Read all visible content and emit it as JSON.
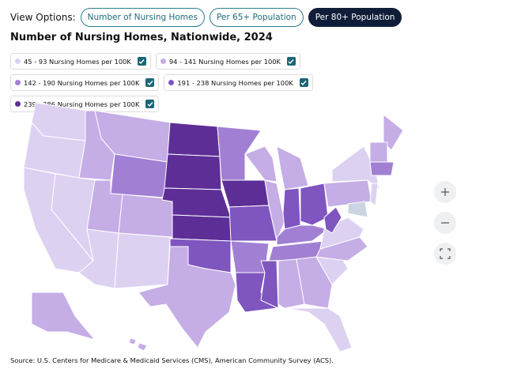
{
  "header": {
    "view_label": "View Options:",
    "buttons": [
      "Number of Nursing Homes",
      "Per 65+ Population",
      "Per 80+ Population"
    ],
    "active_button": 2
  },
  "title": "Number of Nursing Homes, Nationwide, 2024",
  "legend": [
    {
      "label": "45 - 93 Nursing Homes per 100K",
      "color": "#ddd1f2",
      "checked": true
    },
    {
      "label": "94 - 141 Nursing Homes per 100K",
      "color": "#c5ade6",
      "checked": true
    },
    {
      "label": "142 - 190 Nursing Homes per 100K",
      "color": "#a180d4",
      "checked": true
    },
    {
      "label": "191 - 238 Nursing Homes per 100K",
      "color": "#7f55bf",
      "checked": true
    },
    {
      "label": "239 - 286 Nursing Homes per 100K",
      "color": "#5d2f96",
      "checked": true
    }
  ],
  "source": "Source: U.S. Centers for Medicare & Medicaid Services (CMS), American Community Survey (ACS)."
}
